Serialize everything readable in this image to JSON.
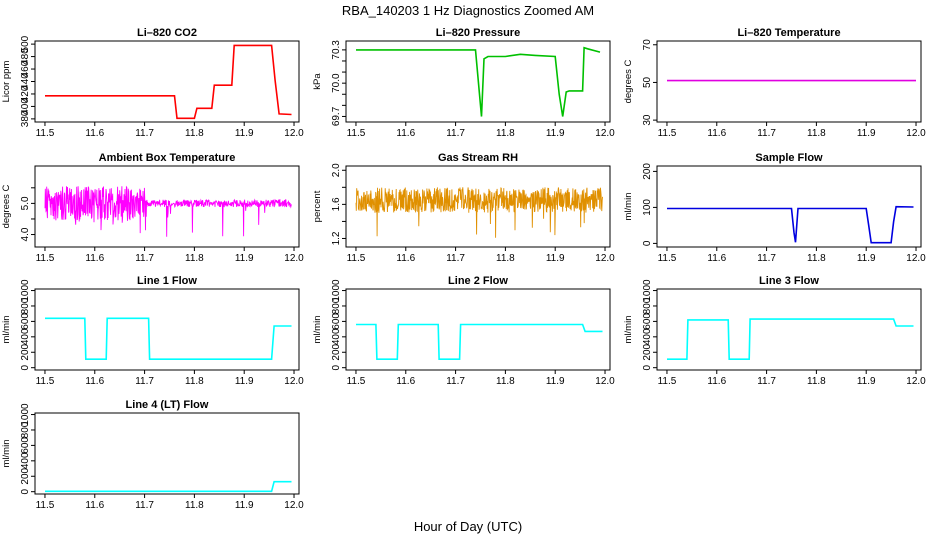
{
  "figure": {
    "title": "RBA_140203  1 Hz Diagnostics Zoomed AM",
    "xlabel": "Hour of Day (UTC)"
  },
  "chart_data": [
    {
      "type": "line",
      "title": "Li–820 CO2",
      "ylabel": "Licor ppm",
      "color": "#ff0000",
      "xlim": [
        11.48,
        12.01
      ],
      "ylim": [
        375,
        505
      ],
      "xticks": [
        "11.5",
        "11.6",
        "11.7",
        "11.8",
        "11.9",
        "12.0"
      ],
      "yticks": [
        380,
        400,
        420,
        440,
        460,
        480,
        500
      ],
      "x": [
        11.5,
        11.76,
        11.765,
        11.8,
        11.805,
        11.835,
        11.84,
        11.875,
        11.88,
        11.955,
        11.962,
        11.97,
        11.995
      ],
      "y": [
        417,
        417,
        381,
        381,
        397,
        397,
        434,
        434,
        498,
        498,
        442,
        388,
        387
      ]
    },
    {
      "type": "line",
      "title": "Li–820 Pressure",
      "ylabel": "kPa",
      "color": "#00c000",
      "xlim": [
        11.48,
        12.01
      ],
      "ylim": [
        69.65,
        70.38
      ],
      "xticks": [
        "11.5",
        "11.6",
        "11.7",
        "11.8",
        "11.9",
        "12.0"
      ],
      "yticks": [
        "69.7",
        "70.0",
        "70.3"
      ],
      "ytick_values": [
        69.7,
        70.0,
        70.3
      ],
      "minor_yticks": [
        69.8,
        69.9,
        70.1,
        70.2
      ],
      "x": [
        11.5,
        11.74,
        11.752,
        11.757,
        11.765,
        11.8,
        11.83,
        11.86,
        11.9,
        11.908,
        11.915,
        11.922,
        11.928,
        11.955,
        11.958,
        11.965,
        11.99
      ],
      "y": [
        70.3,
        70.3,
        69.7,
        70.22,
        70.24,
        70.24,
        70.26,
        70.25,
        70.24,
        69.9,
        69.7,
        69.92,
        69.93,
        69.93,
        70.32,
        70.31,
        70.28
      ]
    },
    {
      "type": "line",
      "title": "Li–820 Temperature",
      "ylabel": "degrees C",
      "color": "#e000e0",
      "xlim": [
        11.48,
        12.01
      ],
      "ylim": [
        29,
        72
      ],
      "xticks": [
        "11.5",
        "11.6",
        "11.7",
        "11.8",
        "11.9",
        "12.0"
      ],
      "yticks": [
        30,
        50,
        70
      ],
      "x": [
        11.5,
        12.0
      ],
      "y": [
        51,
        51
      ]
    },
    {
      "type": "line",
      "title": "Ambient Box Temperature",
      "ylabel": "degrees C",
      "color": "#ff00ff",
      "xlim": [
        11.48,
        12.01
      ],
      "ylim": [
        3.6,
        6.2
      ],
      "xticks": [
        "11.5",
        "11.6",
        "11.7",
        "11.8",
        "11.9",
        "12.0"
      ],
      "yticks": [
        "4.0",
        "5.0"
      ],
      "ytick_values": [
        4.0,
        5.0
      ],
      "minor_yticks": [
        4.5,
        5.5
      ],
      "baseline": 5.0,
      "noise": 0.55,
      "noisy_until": 11.7,
      "quiet_noise": 0.12,
      "spike_low": 3.8
    },
    {
      "type": "line",
      "title": "Gas Stream RH",
      "ylabel": "percent",
      "color": "#e09000",
      "xlim": [
        11.48,
        12.01
      ],
      "ylim": [
        1.1,
        2.05
      ],
      "xticks": [
        "11.5",
        "11.6",
        "11.7",
        "11.8",
        "11.9",
        "12.0"
      ],
      "yticks": [
        "1.2",
        "1.6",
        "2.0"
      ],
      "ytick_values": [
        1.2,
        1.6,
        2.0
      ],
      "minor_yticks": [
        1.4,
        1.8
      ],
      "baseline": 1.65,
      "noise": 0.15,
      "spike_low": 1.2
    },
    {
      "type": "line",
      "title": "Sample Flow",
      "ylabel": "ml/min",
      "color": "#0000e0",
      "xlim": [
        11.48,
        12.01
      ],
      "ylim": [
        -10,
        215
      ],
      "xticks": [
        "11.5",
        "11.6",
        "11.7",
        "11.8",
        "11.9",
        "12.0"
      ],
      "yticks": [
        0,
        100,
        200
      ],
      "x": [
        11.5,
        11.75,
        11.755,
        11.758,
        11.763,
        11.9,
        11.905,
        11.91,
        11.95,
        11.955,
        11.96,
        11.995
      ],
      "y": [
        97,
        97,
        30,
        3,
        97,
        97,
        50,
        2,
        2,
        60,
        102,
        101
      ]
    },
    {
      "type": "line",
      "title": "Line 1 Flow",
      "ylabel": "ml/min",
      "color": "#00ffff",
      "xlim": [
        11.48,
        12.01
      ],
      "ylim": [
        -30,
        1020
      ],
      "xticks": [
        "11.5",
        "11.6",
        "11.7",
        "11.8",
        "11.9",
        "12.0"
      ],
      "yticks": [
        0,
        200,
        400,
        600,
        800,
        1000
      ],
      "x": [
        11.5,
        11.58,
        11.582,
        11.623,
        11.625,
        11.708,
        11.71,
        11.955,
        11.96,
        11.995
      ],
      "y": [
        640,
        640,
        110,
        110,
        640,
        640,
        110,
        110,
        540,
        540
      ]
    },
    {
      "type": "line",
      "title": "Line 2 Flow",
      "ylabel": "ml/min",
      "color": "#00ffff",
      "xlim": [
        11.48,
        12.01
      ],
      "ylim": [
        -30,
        1020
      ],
      "xticks": [
        "11.5",
        "11.6",
        "11.7",
        "11.8",
        "11.9",
        "12.0"
      ],
      "yticks": [
        0,
        200,
        400,
        600,
        800,
        1000
      ],
      "x": [
        11.5,
        11.54,
        11.542,
        11.583,
        11.585,
        11.665,
        11.667,
        11.708,
        11.71,
        11.955,
        11.96,
        11.995
      ],
      "y": [
        560,
        560,
        110,
        110,
        560,
        560,
        110,
        110,
        560,
        560,
        470,
        470
      ]
    },
    {
      "type": "line",
      "title": "Line 3 Flow",
      "ylabel": "ml/min",
      "color": "#00ffff",
      "xlim": [
        11.48,
        12.01
      ],
      "ylim": [
        -30,
        1020
      ],
      "xticks": [
        "11.5",
        "11.6",
        "11.7",
        "11.8",
        "11.9",
        "12.0"
      ],
      "yticks": [
        0,
        200,
        400,
        600,
        800,
        1000
      ],
      "x": [
        11.5,
        11.54,
        11.542,
        11.623,
        11.625,
        11.665,
        11.667,
        11.955,
        11.96,
        11.995
      ],
      "y": [
        110,
        110,
        620,
        620,
        110,
        110,
        630,
        630,
        540,
        540
      ]
    },
    {
      "type": "line",
      "title": "Line 4 (LT) Flow",
      "ylabel": "ml/min",
      "color": "#00ffff",
      "xlim": [
        11.48,
        12.01
      ],
      "ylim": [
        -30,
        1020
      ],
      "xticks": [
        "11.5",
        "11.6",
        "11.7",
        "11.8",
        "11.9",
        "12.0"
      ],
      "yticks": [
        0,
        200,
        400,
        600,
        800,
        1000
      ],
      "x": [
        11.5,
        11.955,
        11.96,
        11.995
      ],
      "y": [
        5,
        5,
        130,
        130
      ]
    }
  ]
}
